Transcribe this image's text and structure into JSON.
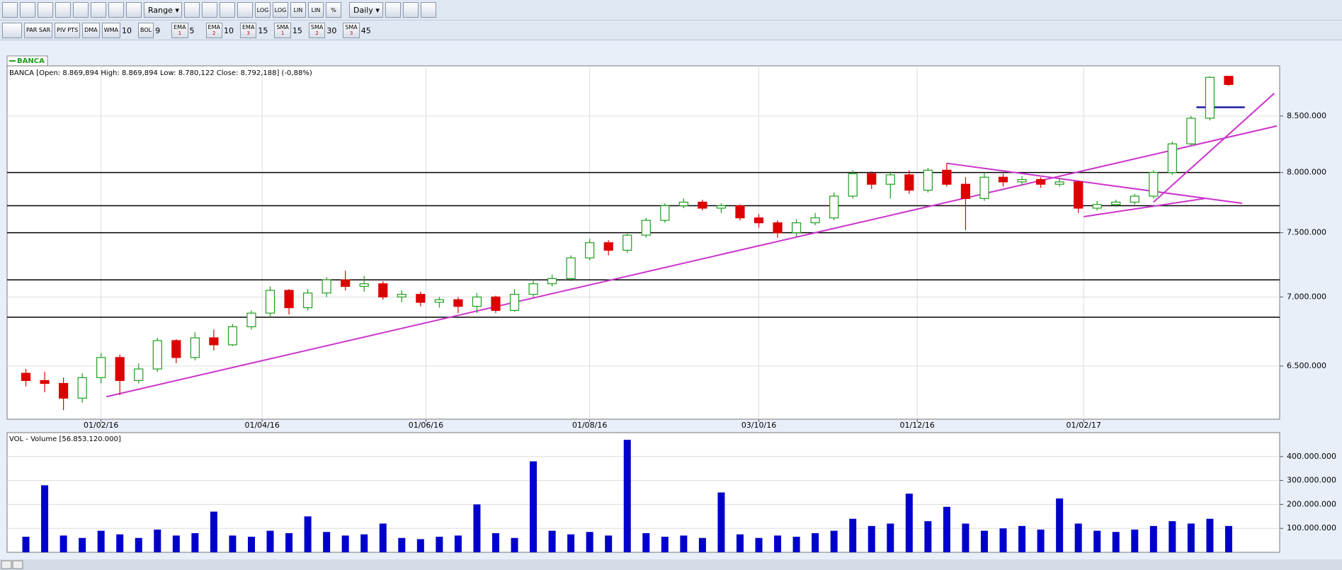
{
  "toolbar": {
    "range": "Range",
    "scales": [
      "LOG",
      "LOG",
      "LIN",
      "LIN",
      "%"
    ],
    "interval": "Daily"
  },
  "indicators": [
    {
      "name": "PAR SAR"
    },
    {
      "name": "PIV PTS"
    },
    {
      "name": "DMA"
    },
    {
      "name": "WMA",
      "period": 10
    },
    {
      "name": "BOL",
      "period": 9
    },
    {
      "name": "EMA",
      "index": 1,
      "period": 5
    },
    {
      "name": "EMA",
      "index": 2,
      "period": 10
    },
    {
      "name": "EMA",
      "index": 3,
      "period": 15
    },
    {
      "name": "SMA",
      "index": 1,
      "period": 15
    },
    {
      "name": "SMA",
      "index": 2,
      "period": 30
    },
    {
      "name": "SMA",
      "index": 3,
      "period": 45
    }
  ],
  "legend": "BANCA",
  "chart_data": [
    {
      "type": "candlestick",
      "title": "BANCA [Open: 8.869,894  High: 8.869,894  Low: 8.780,122  Close: 8.792,188] (-0,88%)",
      "x": [
        "04/01/16",
        "11/01/16",
        "18/01/16",
        "25/01/16",
        "01/02/16",
        "08/02/16",
        "15/02/16",
        "22/02/16",
        "29/02/16",
        "07/03/16",
        "14/03/16",
        "21/03/16",
        "28/03/16",
        "04/04/16",
        "11/04/16",
        "18/04/16",
        "25/04/16",
        "02/05/16",
        "09/05/16",
        "16/05/16",
        "23/05/16",
        "30/05/16",
        "06/06/16",
        "13/06/16",
        "20/06/16",
        "27/06/16",
        "04/07/16",
        "11/07/16",
        "18/07/16",
        "25/07/16",
        "01/08/16",
        "08/08/16",
        "15/08/16",
        "22/08/16",
        "29/08/16",
        "05/09/16",
        "12/09/16",
        "19/09/16",
        "26/09/16",
        "03/10/16",
        "10/10/16",
        "17/10/16",
        "24/10/16",
        "31/10/16",
        "07/11/16",
        "14/11/16",
        "21/11/16",
        "28/11/16",
        "05/12/16",
        "12/12/16",
        "19/12/16",
        "26/12/16",
        "02/01/17",
        "09/01/17",
        "16/01/17",
        "23/01/17",
        "30/01/17",
        "06/02/17",
        "13/02/17",
        "20/02/17",
        "27/02/17",
        "06/03/17",
        "13/03/17",
        "20/03/17",
        "27/03/17"
      ],
      "open": [
        6450000,
        6400000,
        6380000,
        6280000,
        6420000,
        6560000,
        6400000,
        6480000,
        6680000,
        6560000,
        6700000,
        6650000,
        6780000,
        6880000,
        7050000,
        6920000,
        7030000,
        7130000,
        7080000,
        7100000,
        7000000,
        7020000,
        6960000,
        6980000,
        6930000,
        7000000,
        6900000,
        7020000,
        7100000,
        7140000,
        7300000,
        7420000,
        7360000,
        7480000,
        7600000,
        7720000,
        7750000,
        7700000,
        7720000,
        7620000,
        7580000,
        7500000,
        7580000,
        7620000,
        7800000,
        7990000,
        7900000,
        7980000,
        7850000,
        8020000,
        7900000,
        7780000,
        7960000,
        7920000,
        7940000,
        7900000,
        7920000,
        7700000,
        7730000,
        7750000,
        7800000,
        8000000,
        8250000,
        8480000,
        8869894
      ],
      "high": [
        6480000,
        6460000,
        6420000,
        6450000,
        6590000,
        6580000,
        6520000,
        6700000,
        6690000,
        6740000,
        6760000,
        6800000,
        6900000,
        7080000,
        7060000,
        7060000,
        7150000,
        7200000,
        7160000,
        7120000,
        7050000,
        7040000,
        7000000,
        7000000,
        7030000,
        7010000,
        7060000,
        7130000,
        7170000,
        7320000,
        7450000,
        7440000,
        7500000,
        7620000,
        7740000,
        7780000,
        7770000,
        7740000,
        7730000,
        7650000,
        7600000,
        7610000,
        7660000,
        7830000,
        8020000,
        8010000,
        8010000,
        8020000,
        8040000,
        8080000,
        7960000,
        8000000,
        7990000,
        7970000,
        7960000,
        7950000,
        7930000,
        7760000,
        7770000,
        7820000,
        8020000,
        8270000,
        8500000,
        8870000,
        8869894
      ],
      "low": [
        6360000,
        6320000,
        6200000,
        6250000,
        6380000,
        6300000,
        6380000,
        6460000,
        6520000,
        6540000,
        6610000,
        6640000,
        6760000,
        6850000,
        6870000,
        6900000,
        7000000,
        7050000,
        7040000,
        6980000,
        6960000,
        6930000,
        6920000,
        6880000,
        6880000,
        6880000,
        6890000,
        7000000,
        7080000,
        7120000,
        7280000,
        7320000,
        7340000,
        7460000,
        7580000,
        7700000,
        7680000,
        7660000,
        7600000,
        7540000,
        7460000,
        7470000,
        7560000,
        7600000,
        7780000,
        7860000,
        7780000,
        7820000,
        7830000,
        7880000,
        7520000,
        7760000,
        7880000,
        7890000,
        7870000,
        7880000,
        7660000,
        7680000,
        7710000,
        7730000,
        7780000,
        7980000,
        8230000,
        8460000,
        8780122
      ],
      "close": [
        6400000,
        6380000,
        6280000,
        6420000,
        6560000,
        6400000,
        6480000,
        6680000,
        6560000,
        6700000,
        6650000,
        6780000,
        6880000,
        7050000,
        6920000,
        7030000,
        7130000,
        7080000,
        7100000,
        7000000,
        7020000,
        6960000,
        6980000,
        6930000,
        7000000,
        6900000,
        7020000,
        7100000,
        7140000,
        7300000,
        7420000,
        7360000,
        7480000,
        7600000,
        7720000,
        7750000,
        7700000,
        7720000,
        7620000,
        7580000,
        7500000,
        7580000,
        7620000,
        7800000,
        7990000,
        7900000,
        7980000,
        7850000,
        8020000,
        7900000,
        7780000,
        7960000,
        7920000,
        7940000,
        7900000,
        7920000,
        7700000,
        7730000,
        7750000,
        7800000,
        8000000,
        8250000,
        8480000,
        8860000,
        8792188
      ],
      "up_color": "#1f9e1f",
      "down_color": "#dd0000",
      "xlim": [
        "28/12/15",
        "15/04/17"
      ],
      "xticks": [
        "01/02/16",
        "01/04/16",
        "01/06/16",
        "01/08/16",
        "03/10/16",
        "01/12/16",
        "01/02/17"
      ],
      "ylim": [
        6140000,
        8970000
      ],
      "log_scale": true,
      "yticks": [
        {
          "value": 6500000,
          "label": "6.500.000"
        },
        {
          "value": 7000000,
          "label": "7.000.000"
        },
        {
          "value": 7500000,
          "label": "7.500.000"
        },
        {
          "value": 8000000,
          "label": "8.000.000"
        },
        {
          "value": 8500000,
          "label": "8.500.000"
        }
      ],
      "grid": true,
      "levels": [
        8000000,
        7720000,
        7500000,
        7130000,
        6850000
      ],
      "level_color": "#000000",
      "trendlines": [
        {
          "from": [
            "03/02/16",
            6290000
          ],
          "to": [
            "14/04/17",
            8410000
          ]
        },
        {
          "from": [
            "12/12/16",
            8080000
          ],
          "to": [
            "01/04/17",
            7740000
          ]
        },
        {
          "from": [
            "01/02/17",
            7630000
          ],
          "to": [
            "18/03/17",
            7780000
          ]
        },
        {
          "from": [
            "27/02/17",
            7750000
          ],
          "to": [
            "13/04/17",
            8710000
          ]
        }
      ],
      "trend_color": "#cc33cc",
      "marker_line": {
        "from": [
          "15/03/17",
          8580000
        ],
        "to": [
          "02/04/17",
          8580000
        ],
        "color": "#1a1aa0"
      }
    },
    {
      "type": "bar",
      "title": "VOL - Volume [56.853.120.000]",
      "x": [
        "04/01/16",
        "11/01/16",
        "18/01/16",
        "25/01/16",
        "01/02/16",
        "08/02/16",
        "15/02/16",
        "22/02/16",
        "29/02/16",
        "07/03/16",
        "14/03/16",
        "21/03/16",
        "28/03/16",
        "04/04/16",
        "11/04/16",
        "18/04/16",
        "25/04/16",
        "02/05/16",
        "09/05/16",
        "16/05/16",
        "23/05/16",
        "30/05/16",
        "06/06/16",
        "13/06/16",
        "20/06/16",
        "27/06/16",
        "04/07/16",
        "11/07/16",
        "18/07/16",
        "25/07/16",
        "01/08/16",
        "08/08/16",
        "15/08/16",
        "22/08/16",
        "29/08/16",
        "05/09/16",
        "12/09/16",
        "19/09/16",
        "26/09/16",
        "03/10/16",
        "10/10/16",
        "17/10/16",
        "24/10/16",
        "31/10/16",
        "07/11/16",
        "14/11/16",
        "21/11/16",
        "28/11/16",
        "05/12/16",
        "12/12/16",
        "19/12/16",
        "26/12/16",
        "02/01/17",
        "09/01/17",
        "16/01/17",
        "23/01/17",
        "30/01/17",
        "06/02/17",
        "13/02/17",
        "20/02/17",
        "27/02/17",
        "06/03/17",
        "13/03/17",
        "20/03/17",
        "27/03/17"
      ],
      "values": [
        65000000,
        280000000,
        70000000,
        60000000,
        90000000,
        75000000,
        60000000,
        95000000,
        70000000,
        80000000,
        170000000,
        70000000,
        65000000,
        90000000,
        80000000,
        150000000,
        85000000,
        70000000,
        75000000,
        120000000,
        60000000,
        55000000,
        65000000,
        70000000,
        200000000,
        80000000,
        60000000,
        380000000,
        90000000,
        75000000,
        85000000,
        70000000,
        470000000,
        80000000,
        65000000,
        70000000,
        60000000,
        250000000,
        75000000,
        60000000,
        70000000,
        65000000,
        80000000,
        90000000,
        140000000,
        110000000,
        120000000,
        245000000,
        130000000,
        190000000,
        120000000,
        90000000,
        100000000,
        110000000,
        95000000,
        225000000,
        120000000,
        90000000,
        85000000,
        95000000,
        110000000,
        130000000,
        120000000,
        140000000,
        110000000
      ],
      "color": "#0000cc",
      "xlim": [
        "28/12/15",
        "15/04/17"
      ],
      "ylim": [
        0,
        500000000
      ],
      "yticks": [
        {
          "value": 100000000,
          "label": "100.000.000"
        },
        {
          "value": 200000000,
          "label": "200.000.000"
        },
        {
          "value": 300000000,
          "label": "300.000.000"
        },
        {
          "value": 400000000,
          "label": "400.000.000"
        }
      ],
      "grid": true
    }
  ]
}
